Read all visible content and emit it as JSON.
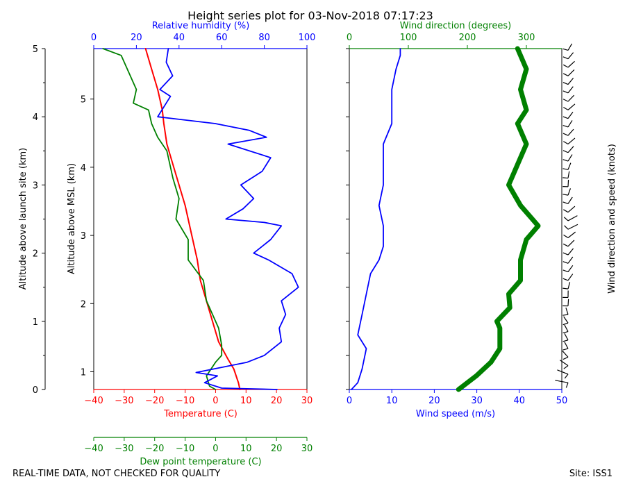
{
  "title": "Height series plot for 03-Nov-2018 07:17:23",
  "footer_left": "REAL-TIME DATA, NOT CHECKED FOR QUALITY",
  "footer_right": "Site: ISS1",
  "colors": {
    "temperature": "#ff0000",
    "dewpoint": "#008000",
    "rh": "#0000ff",
    "wind_speed": "#0000ff",
    "wind_dir": "#008000",
    "axis": "#000000"
  },
  "chart_data": [
    {
      "type": "line",
      "name": "thermo-panel",
      "y_axis_left": {
        "label": "Altitude above launch site (km)",
        "range": [
          0,
          5
        ],
        "ticks": [
          "0",
          "1",
          "2",
          "3",
          "4",
          "5"
        ]
      },
      "y_axis_msl": {
        "label": "Altitude above MSL (km)",
        "ticks": [
          "1",
          "2",
          "3",
          "4",
          "5"
        ],
        "msl_offset_km": 0.74
      },
      "x_axis_temperature": {
        "label": "Temperature (C)",
        "range": [
          -40,
          30
        ],
        "ticks": [
          "−40",
          "−30",
          "−20",
          "−10",
          "0",
          "10",
          "20",
          "30"
        ]
      },
      "x_axis_dewpoint": {
        "label": "Dew point temperature (C)",
        "range": [
          -40,
          30
        ],
        "ticks": [
          "−40",
          "−30",
          "−20",
          "−10",
          "0",
          "10",
          "20",
          "30"
        ]
      },
      "x_axis_rh": {
        "label": "Relative humidity (%)",
        "range": [
          0,
          100
        ],
        "ticks": [
          "0",
          "20",
          "40",
          "60",
          "80",
          "100"
        ]
      },
      "series": [
        {
          "name": "Temperature",
          "axis": "temperature",
          "points": [
            [
              8,
              0
            ],
            [
              7.5,
              0.1
            ],
            [
              6,
              0.3
            ],
            [
              4,
              0.45
            ],
            [
              1,
              0.7
            ],
            [
              -1,
              1
            ],
            [
              -3,
              1.3
            ],
            [
              -5,
              1.6
            ],
            [
              -6,
              1.9
            ],
            [
              -8,
              2.3
            ],
            [
              -10,
              2.7
            ],
            [
              -12,
              3.0
            ],
            [
              -14,
              3.3
            ],
            [
              -16,
              3.6
            ],
            [
              -17,
              3.9
            ],
            [
              -17.5,
              4.1
            ],
            [
              -19,
              4.4
            ],
            [
              -21,
              4.7
            ],
            [
              -23,
              5.0
            ]
          ]
        },
        {
          "name": "Dew point temperature",
          "axis": "dewpoint",
          "points": [
            [
              0,
              0
            ],
            [
              -2,
              0.05
            ],
            [
              -3,
              0.2
            ],
            [
              0,
              0.4
            ],
            [
              2,
              0.5
            ],
            [
              2,
              0.65
            ],
            [
              1,
              0.9
            ],
            [
              -3,
              1.3
            ],
            [
              -4,
              1.6
            ],
            [
              -9,
              1.9
            ],
            [
              -9,
              2.2
            ],
            [
              -13,
              2.5
            ],
            [
              -12,
              2.8
            ],
            [
              -14,
              3.1
            ],
            [
              -16,
              3.5
            ],
            [
              -19,
              3.7
            ],
            [
              -21,
              3.9
            ],
            [
              -22,
              4.1
            ],
            [
              -27,
              4.2
            ],
            [
              -26,
              4.4
            ],
            [
              -31,
              4.9
            ],
            [
              -37,
              5.0
            ]
          ]
        },
        {
          "name": "Relative humidity",
          "axis": "rh",
          "points": [
            [
              86,
              0
            ],
            [
              60,
              0.02
            ],
            [
              52,
              0.1
            ],
            [
              58,
              0.2
            ],
            [
              48,
              0.25
            ],
            [
              72,
              0.4
            ],
            [
              80,
              0.5
            ],
            [
              88,
              0.7
            ],
            [
              87,
              0.9
            ],
            [
              90,
              1.1
            ],
            [
              88,
              1.3
            ],
            [
              96,
              1.5
            ],
            [
              93,
              1.7
            ],
            [
              82,
              1.9
            ],
            [
              75,
              2.0
            ],
            [
              83,
              2.2
            ],
            [
              88,
              2.4
            ],
            [
              80,
              2.45
            ],
            [
              62,
              2.5
            ],
            [
              70,
              2.65
            ],
            [
              75,
              2.8
            ],
            [
              69,
              3.0
            ],
            [
              79,
              3.2
            ],
            [
              83,
              3.4
            ],
            [
              63,
              3.6
            ],
            [
              81,
              3.7
            ],
            [
              73,
              3.8
            ],
            [
              57,
              3.9
            ],
            [
              30,
              4.0
            ],
            [
              36,
              4.3
            ],
            [
              31,
              4.4
            ],
            [
              37,
              4.6
            ],
            [
              34,
              4.8
            ],
            [
              35,
              5.0
            ]
          ]
        }
      ]
    },
    {
      "type": "line",
      "name": "wind-panel",
      "y_range": [
        0,
        5
      ],
      "x_axis_speed": {
        "label": "Wind speed (m/s)",
        "range": [
          0,
          50
        ],
        "ticks": [
          "0",
          "10",
          "20",
          "30",
          "40",
          "50"
        ]
      },
      "x_axis_direction": {
        "label": "Wind direction (degrees)",
        "range": [
          0,
          360
        ],
        "ticks": [
          "0",
          "100",
          "200",
          "300"
        ]
      },
      "barb_axis_label": "Wind direction and speed (knots)",
      "series": [
        {
          "name": "Wind speed",
          "axis": "speed",
          "points": [
            [
              0.5,
              0
            ],
            [
              2,
              0.1
            ],
            [
              3,
              0.3
            ],
            [
              4,
              0.6
            ],
            [
              2,
              0.8
            ],
            [
              3,
              1.1
            ],
            [
              4,
              1.4
            ],
            [
              5,
              1.7
            ],
            [
              7,
              1.9
            ],
            [
              8,
              2.1
            ],
            [
              8,
              2.4
            ],
            [
              7,
              2.7
            ],
            [
              8,
              3.0
            ],
            [
              8,
              3.3
            ],
            [
              8,
              3.6
            ],
            [
              10,
              3.9
            ],
            [
              10,
              4.1
            ],
            [
              10,
              4.4
            ],
            [
              11,
              4.7
            ],
            [
              12,
              4.9
            ],
            [
              12,
              5.0
            ]
          ]
        },
        {
          "name": "Wind direction",
          "axis": "direction",
          "points": [
            [
              185,
              0
            ],
            [
              215,
              0.2
            ],
            [
              240,
              0.4
            ],
            [
              255,
              0.6
            ],
            [
              255,
              0.9
            ],
            [
              250,
              1.0
            ],
            [
              272,
              1.2
            ],
            [
              270,
              1.4
            ],
            [
              290,
              1.6
            ],
            [
              290,
              1.9
            ],
            [
              300,
              2.2
            ],
            [
              320,
              2.4
            ],
            [
              290,
              2.7
            ],
            [
              270,
              3.0
            ],
            [
              285,
              3.3
            ],
            [
              300,
              3.6
            ],
            [
              285,
              3.9
            ],
            [
              300,
              4.1
            ],
            [
              290,
              4.4
            ],
            [
              300,
              4.7
            ],
            [
              285,
              5.0
            ]
          ]
        }
      ]
    }
  ]
}
